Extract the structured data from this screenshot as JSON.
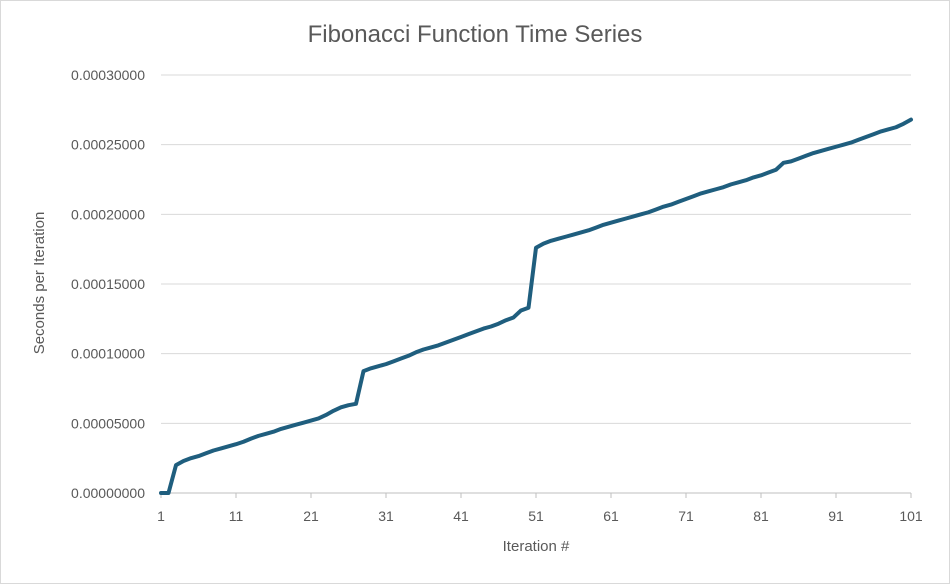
{
  "chart_data": {
    "type": "line",
    "title": "Fibonacci Function Time Series",
    "xlabel": "Iteration #",
    "ylabel": "Seconds per Iteration",
    "xlim": [
      1,
      101
    ],
    "ylim": [
      0,
      0.0003
    ],
    "y_ticks": [
      "0.00000000",
      "0.00005000",
      "0.00010000",
      "0.00015000",
      "0.00020000",
      "0.00025000",
      "0.00030000"
    ],
    "x_ticks": [
      "1",
      "11",
      "21",
      "31",
      "41",
      "51",
      "61",
      "71",
      "81",
      "91",
      "101"
    ],
    "grid": "horizontal",
    "legend": "none",
    "color": "#1f5e7e",
    "x": [
      1,
      2,
      3,
      4,
      5,
      6,
      7,
      8,
      9,
      10,
      11,
      12,
      13,
      14,
      15,
      16,
      17,
      18,
      19,
      20,
      21,
      22,
      23,
      24,
      25,
      26,
      27,
      28,
      29,
      30,
      31,
      32,
      33,
      34,
      35,
      36,
      37,
      38,
      39,
      40,
      41,
      42,
      43,
      44,
      45,
      46,
      47,
      48,
      49,
      50,
      51,
      52,
      53,
      54,
      55,
      56,
      57,
      58,
      59,
      60,
      61,
      62,
      63,
      64,
      65,
      66,
      67,
      68,
      69,
      70,
      71,
      72,
      73,
      74,
      75,
      76,
      77,
      78,
      79,
      80,
      81,
      82,
      83,
      84,
      85,
      86,
      87,
      88,
      89,
      90,
      91,
      92,
      93,
      94,
      95,
      96,
      97,
      98,
      99,
      100,
      101
    ],
    "values": [
      0.0,
      0.0,
      2e-05,
      2.3e-05,
      2.5e-05,
      2.65e-05,
      2.85e-05,
      3.05e-05,
      3.2e-05,
      3.35e-05,
      3.5e-05,
      3.68e-05,
      3.9e-05,
      4.1e-05,
      4.25e-05,
      4.4e-05,
      4.6e-05,
      4.75e-05,
      4.9e-05,
      5.05e-05,
      5.2e-05,
      5.35e-05,
      5.6e-05,
      5.9e-05,
      6.15e-05,
      6.3e-05,
      6.4e-05,
      8.75e-05,
      8.95e-05,
      9.1e-05,
      9.25e-05,
      9.45e-05,
      9.65e-05,
      9.85e-05,
      0.000101,
      0.000103,
      0.0001045,
      0.000106,
      0.000108,
      0.00011,
      0.000112,
      0.000114,
      0.000116,
      0.000118,
      0.0001195,
      0.0001215,
      0.000124,
      0.000126,
      0.000131,
      0.000133,
      0.000176,
      0.000179,
      0.000181,
      0.0001825,
      0.000184,
      0.0001855,
      0.000187,
      0.0001885,
      0.0001905,
      0.0001925,
      0.000194,
      0.0001955,
      0.000197,
      0.0001985,
      0.0002,
      0.0002015,
      0.0002035,
      0.0002055,
      0.000207,
      0.000209,
      0.000211,
      0.000213,
      0.000215,
      0.0002165,
      0.000218,
      0.0002195,
      0.0002215,
      0.000223,
      0.0002245,
      0.0002265,
      0.000228,
      0.00023,
      0.000232,
      0.000237,
      0.000238,
      0.00024,
      0.000242,
      0.000244,
      0.0002455,
      0.000247,
      0.0002485,
      0.00025,
      0.0002515,
      0.0002535,
      0.0002555,
      0.0002575,
      0.0002595,
      0.000261,
      0.0002625,
      0.000265,
      0.000268
    ]
  }
}
